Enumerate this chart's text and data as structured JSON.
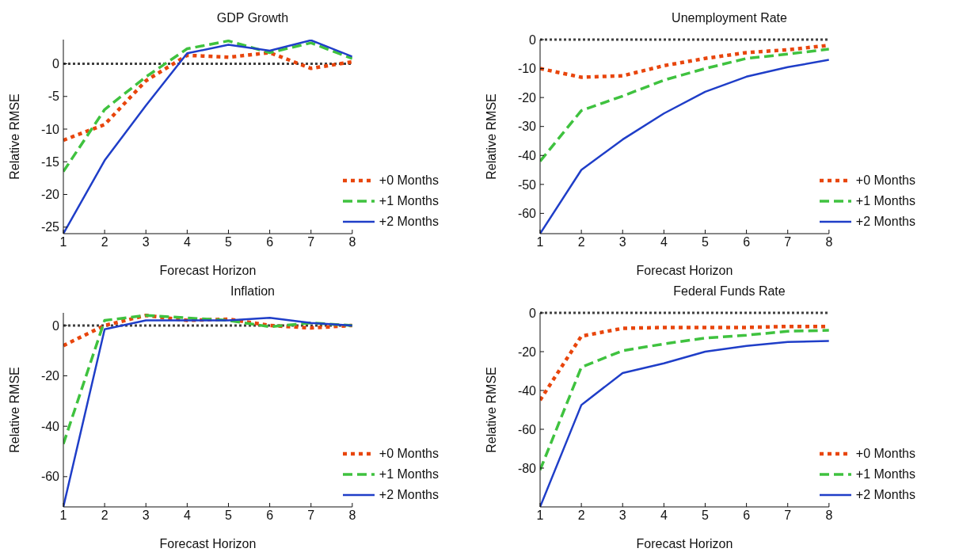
{
  "chart_data": [
    {
      "type": "line",
      "title": "GDP Growth",
      "xlabel": "Forecast Horizon",
      "ylabel": "Relative RMSE",
      "x": [
        1,
        2,
        3,
        4,
        5,
        6,
        7,
        8
      ],
      "xlim": [
        1,
        8
      ],
      "xticks": [
        1,
        2,
        3,
        4,
        5,
        6,
        7,
        8
      ],
      "ylim": [
        -26,
        3.7
      ],
      "yticks": [
        -25,
        -20,
        -15,
        -10,
        -5,
        0
      ],
      "grid": false,
      "legend": "bottom right",
      "marker": "none",
      "ref_lines": [
        {
          "axis": "y",
          "value": 0,
          "color": "#404040",
          "line_style": "dotted"
        }
      ],
      "series": [
        {
          "name": "+0 Months",
          "color": "#e8450c",
          "line_style": "dotted",
          "values": [
            -11.7,
            -9.3,
            -2.6,
            1.3,
            1.0,
            1.7,
            -0.7,
            0.3
          ]
        },
        {
          "name": "+1 Months",
          "color": "#3fc23f",
          "line_style": "dashed",
          "values": [
            -16.5,
            -7,
            -2,
            2.3,
            3.5,
            1.7,
            3.2,
            0.8
          ]
        },
        {
          "name": "+2 Months",
          "color": "#1f3ec8",
          "line_style": "solid",
          "values": [
            -26,
            -14.8,
            -6.4,
            1.6,
            2.9,
            2.0,
            3.6,
            1.1
          ]
        }
      ]
    },
    {
      "type": "line",
      "title": "Unemployment Rate",
      "xlabel": "Forecast Horizon",
      "ylabel": "Relative RMSE",
      "x": [
        1,
        2,
        3,
        4,
        5,
        6,
        7,
        8
      ],
      "xlim": [
        1,
        8
      ],
      "xticks": [
        1,
        2,
        3,
        4,
        5,
        6,
        7,
        8
      ],
      "ylim": [
        -67,
        0
      ],
      "yticks": [
        -60,
        -50,
        -40,
        -30,
        -20,
        -10,
        0
      ],
      "grid": false,
      "legend": "bottom right",
      "marker": "none",
      "ref_lines": [
        {
          "axis": "y",
          "value": 0,
          "color": "#404040",
          "line_style": "dotted"
        }
      ],
      "series": [
        {
          "name": "+0 Months",
          "color": "#e8450c",
          "line_style": "dotted",
          "values": [
            -10,
            -13,
            -12.5,
            -9,
            -6.5,
            -4.5,
            -3.5,
            -2
          ]
        },
        {
          "name": "+1 Months",
          "color": "#3fc23f",
          "line_style": "dashed",
          "values": [
            -42,
            -24.5,
            -19.5,
            -14,
            -10,
            -6.5,
            -5,
            -3.3
          ]
        },
        {
          "name": "+2 Months",
          "color": "#1f3ec8",
          "line_style": "solid",
          "values": [
            -67,
            -45,
            -34.5,
            -25.5,
            -18,
            -12.8,
            -9.5,
            -7
          ]
        }
      ]
    },
    {
      "type": "line",
      "title": "Inflation",
      "xlabel": "Forecast Horizon",
      "ylabel": "Relative RMSE",
      "x": [
        1,
        2,
        3,
        4,
        5,
        6,
        7,
        8
      ],
      "xlim": [
        1,
        8
      ],
      "xticks": [
        1,
        2,
        3,
        4,
        5,
        6,
        7,
        8
      ],
      "ylim": [
        -72,
        5
      ],
      "yticks": [
        -60,
        -40,
        -20,
        0
      ],
      "grid": false,
      "legend": "bottom right",
      "marker": "none",
      "ref_lines": [
        {
          "axis": "y",
          "value": 0,
          "color": "#404040",
          "line_style": "dotted"
        }
      ],
      "series": [
        {
          "name": "+0 Months",
          "color": "#e8450c",
          "line_style": "dotted",
          "values": [
            -8,
            0,
            4,
            2,
            2.5,
            0,
            -1,
            0
          ]
        },
        {
          "name": "+1 Months",
          "color": "#3fc23f",
          "line_style": "dashed",
          "values": [
            -47,
            2,
            4,
            3,
            2,
            -0.5,
            1,
            0
          ]
        },
        {
          "name": "+2 Months",
          "color": "#1f3ec8",
          "line_style": "solid",
          "values": [
            -72,
            -1.5,
            2,
            2,
            2,
            3,
            1,
            0
          ]
        }
      ]
    },
    {
      "type": "line",
      "title": "Federal Funds Rate",
      "xlabel": "Forecast Horizon",
      "ylabel": "Relative RMSE",
      "x": [
        1,
        2,
        3,
        4,
        5,
        6,
        7,
        8
      ],
      "xlim": [
        1,
        8
      ],
      "xticks": [
        1,
        2,
        3,
        4,
        5,
        6,
        7,
        8
      ],
      "ylim": [
        -100,
        0
      ],
      "yticks": [
        -80,
        -60,
        -40,
        -20,
        0
      ],
      "grid": false,
      "legend": "bottom right",
      "marker": "none",
      "ref_lines": [
        {
          "axis": "y",
          "value": 0,
          "color": "#404040",
          "line_style": "dotted"
        }
      ],
      "series": [
        {
          "name": "+0 Months",
          "color": "#e8450c",
          "line_style": "dotted",
          "values": [
            -45,
            -12,
            -8,
            -7.5,
            -7.5,
            -7.5,
            -7,
            -7
          ]
        },
        {
          "name": "+1 Months",
          "color": "#3fc23f",
          "line_style": "dashed",
          "values": [
            -81,
            -28,
            -19.5,
            -16,
            -13,
            -11.5,
            -9.5,
            -9
          ]
        },
        {
          "name": "+2 Months",
          "color": "#1f3ec8",
          "line_style": "solid",
          "values": [
            -100,
            -47.5,
            -31,
            -26,
            -20,
            -17,
            -15,
            -14.5
          ]
        }
      ]
    }
  ]
}
